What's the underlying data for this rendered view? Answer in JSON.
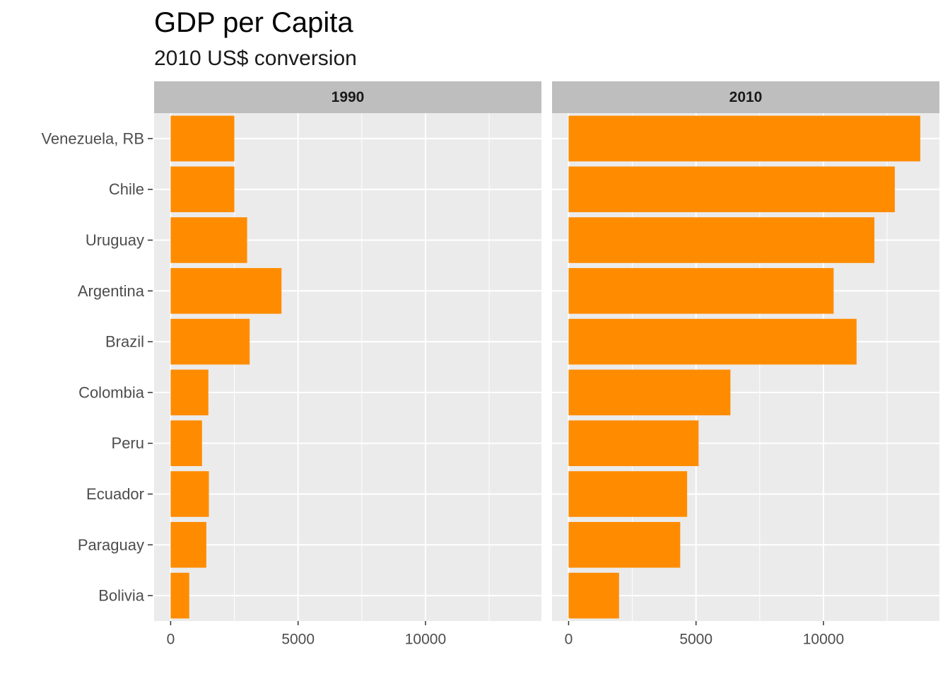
{
  "chart_data": {
    "type": "bar",
    "orientation": "horizontal",
    "title": "GDP per Capita",
    "subtitle": "2010 US$ conversion",
    "xlabel": "",
    "ylabel": "",
    "categories": [
      "Venezuela, RB",
      "Chile",
      "Uruguay",
      "Argentina",
      "Brazil",
      "Colombia",
      "Peru",
      "Ecuador",
      "Paraguay",
      "Bolivia"
    ],
    "xlim": [
      -650,
      14550
    ],
    "x_ticks": [
      0,
      5000,
      10000
    ],
    "x_tick_labels": [
      "0",
      "5000",
      "10000"
    ],
    "grid": true,
    "bar_color": "#FF8C00",
    "panel_color": "#EBEBEB",
    "strip_color": "#BEBEBE",
    "facets": [
      {
        "label": "1990",
        "values": [
          2500,
          2500,
          3000,
          4350,
          3100,
          1480,
          1230,
          1500,
          1400,
          730
        ]
      },
      {
        "label": "2010",
        "values": [
          13800,
          12800,
          12000,
          10400,
          11300,
          6350,
          5100,
          4650,
          4380,
          1980
        ]
      }
    ]
  }
}
